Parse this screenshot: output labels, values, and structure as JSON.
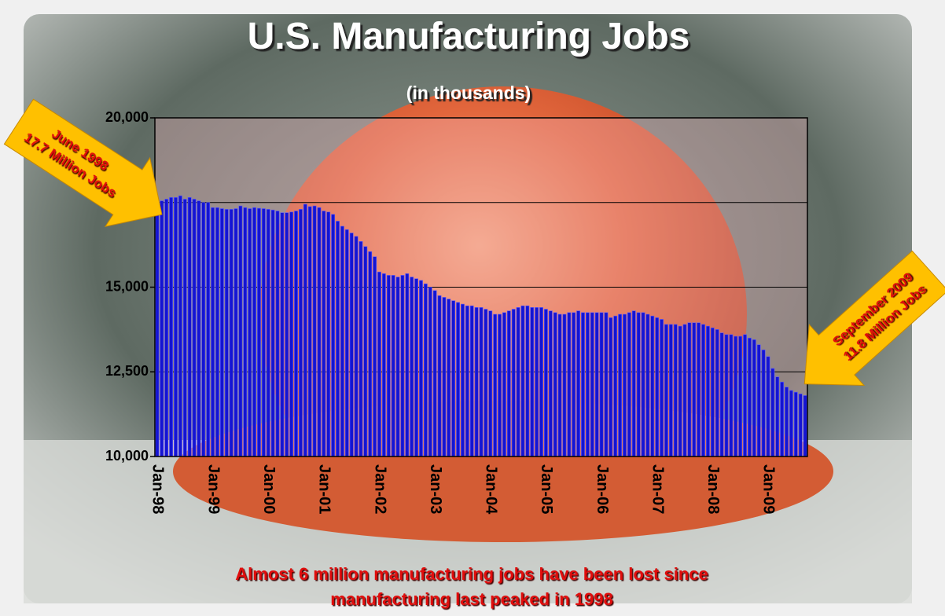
{
  "chart_data": {
    "type": "bar",
    "title": "U.S. Manufacturing Jobs",
    "subtitle": "(in thousands)",
    "color": "#1414d2",
    "grid": true,
    "ylim": [
      10000,
      20000
    ],
    "yticks": [
      {
        "value": 10000,
        "label": "10,000"
      },
      {
        "value": 12500,
        "label": "12,500"
      },
      {
        "value": 15000,
        "label": "15,000"
      },
      {
        "value": 17500,
        "label": "17,500"
      },
      {
        "value": 20000,
        "label": "20,000"
      }
    ],
    "categories": [
      "Jan-98",
      null,
      null,
      null,
      null,
      null,
      null,
      null,
      null,
      null,
      null,
      null,
      "Jan-99",
      null,
      null,
      null,
      null,
      null,
      null,
      null,
      null,
      null,
      null,
      null,
      "Jan-00",
      null,
      null,
      null,
      null,
      null,
      null,
      null,
      null,
      null,
      null,
      null,
      "Jan-01",
      null,
      null,
      null,
      null,
      null,
      null,
      null,
      null,
      null,
      null,
      null,
      "Jan-02",
      null,
      null,
      null,
      null,
      null,
      null,
      null,
      null,
      null,
      null,
      null,
      "Jan-03",
      null,
      null,
      null,
      null,
      null,
      null,
      null,
      null,
      null,
      null,
      null,
      "Jan-04",
      null,
      null,
      null,
      null,
      null,
      null,
      null,
      null,
      null,
      null,
      null,
      "Jan-05",
      null,
      null,
      null,
      null,
      null,
      null,
      null,
      null,
      null,
      null,
      null,
      "Jan-06",
      null,
      null,
      null,
      null,
      null,
      null,
      null,
      null,
      null,
      null,
      null,
      "Jan-07",
      null,
      null,
      null,
      null,
      null,
      null,
      null,
      null,
      null,
      null,
      null,
      "Jan-08",
      null,
      null,
      null,
      null,
      null,
      null,
      null,
      null,
      null,
      null,
      null,
      "Jan-09",
      null,
      null,
      null,
      null,
      null,
      null,
      null,
      null
    ],
    "values": [
      17500,
      17550,
      17600,
      17650,
      17650,
      17700,
      17600,
      17650,
      17600,
      17550,
      17500,
      17500,
      17350,
      17350,
      17320,
      17300,
      17300,
      17320,
      17400,
      17350,
      17320,
      17350,
      17330,
      17320,
      17300,
      17280,
      17250,
      17200,
      17200,
      17220,
      17250,
      17300,
      17450,
      17380,
      17400,
      17350,
      17250,
      17220,
      17150,
      16950,
      16800,
      16700,
      16600,
      16500,
      16350,
      16200,
      16050,
      15900,
      15450,
      15400,
      15350,
      15350,
      15300,
      15350,
      15400,
      15300,
      15250,
      15200,
      15100,
      15000,
      14900,
      14750,
      14700,
      14650,
      14600,
      14550,
      14500,
      14450,
      14450,
      14400,
      14400,
      14350,
      14300,
      14200,
      14200,
      14250,
      14300,
      14350,
      14400,
      14450,
      14450,
      14400,
      14400,
      14400,
      14350,
      14300,
      14250,
      14200,
      14200,
      14250,
      14250,
      14300,
      14250,
      14250,
      14250,
      14250,
      14250,
      14250,
      14100,
      14150,
      14200,
      14200,
      14250,
      14300,
      14250,
      14250,
      14200,
      14150,
      14100,
      14050,
      13900,
      13900,
      13900,
      13850,
      13900,
      13950,
      13950,
      13950,
      13900,
      13850,
      13800,
      13750,
      13650,
      13600,
      13600,
      13550,
      13550,
      13600,
      13500,
      13450,
      13300,
      13150,
      12950,
      12600,
      12350,
      12200,
      12050,
      11950,
      11900,
      11850,
      11800
    ],
    "annotations": [
      {
        "lines": [
          "June 1998",
          "17.7 Million Jobs"
        ]
      },
      {
        "lines": [
          "September 2009",
          "11.8 Million Jobs"
        ]
      }
    ],
    "footnote": [
      "Almost 6 million manufacturing jobs have been lost since",
      "manufacturing last peaked in 1998"
    ]
  }
}
